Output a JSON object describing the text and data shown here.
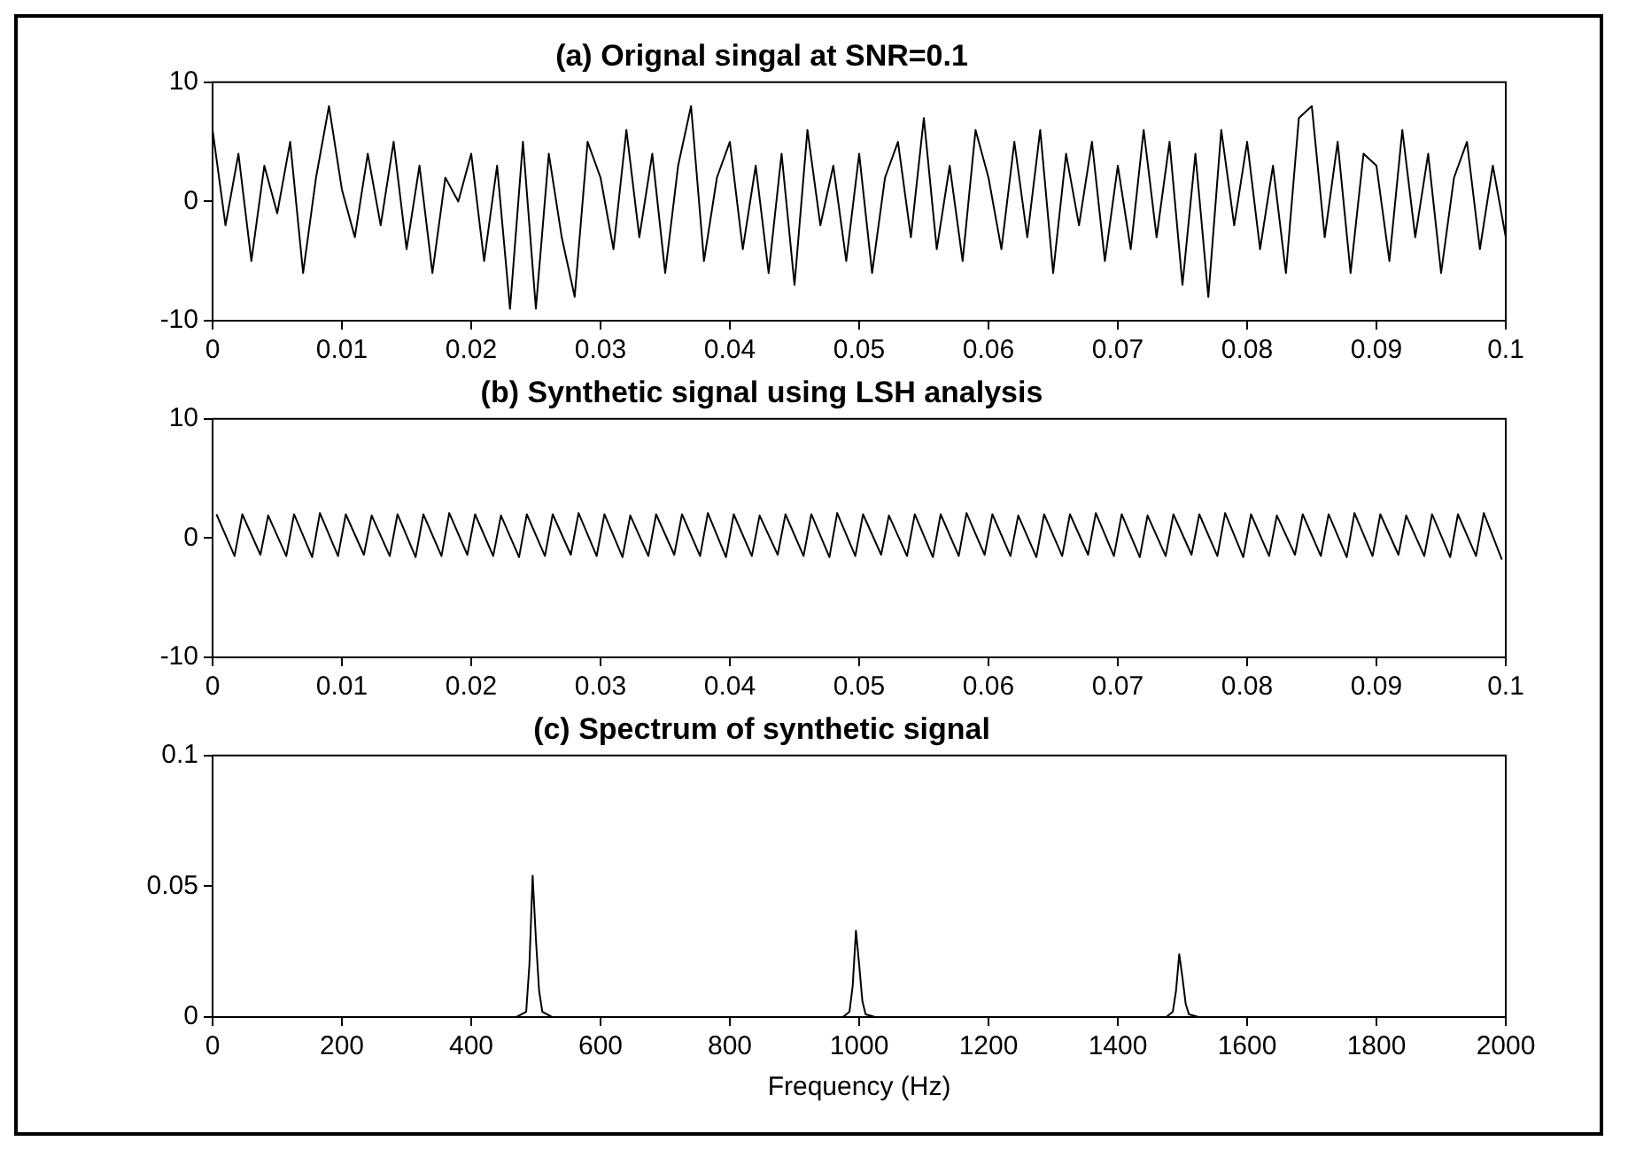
{
  "chart_data": [
    {
      "type": "line",
      "title": "(a) Orignal singal at SNR=0.1",
      "color": "#000000",
      "grid": false,
      "legend": false,
      "marker": "none",
      "line_style": "solid",
      "x": [
        0,
        0.001,
        0.002,
        0.003,
        0.004,
        0.005,
        0.006,
        0.007,
        0.008,
        0.009,
        0.01,
        0.011,
        0.012,
        0.013,
        0.014,
        0.015,
        0.016,
        0.017,
        0.018,
        0.019,
        0.02,
        0.021,
        0.022,
        0.023,
        0.024,
        0.025,
        0.026,
        0.027,
        0.028,
        0.029,
        0.03,
        0.031,
        0.032,
        0.033,
        0.034,
        0.035,
        0.036,
        0.037,
        0.038,
        0.039,
        0.04,
        0.041,
        0.042,
        0.043,
        0.044,
        0.045,
        0.046,
        0.047,
        0.048,
        0.049,
        0.05,
        0.051,
        0.052,
        0.053,
        0.054,
        0.055,
        0.056,
        0.057,
        0.058,
        0.059,
        0.06,
        0.061,
        0.062,
        0.063,
        0.064,
        0.065,
        0.066,
        0.067,
        0.068,
        0.069,
        0.07,
        0.071,
        0.072,
        0.073,
        0.074,
        0.075,
        0.076,
        0.077,
        0.078,
        0.079,
        0.08,
        0.081,
        0.082,
        0.083,
        0.084,
        0.085,
        0.086,
        0.087,
        0.088,
        0.089,
        0.09,
        0.091,
        0.092,
        0.093,
        0.094,
        0.095,
        0.096,
        0.097,
        0.098,
        0.099,
        0.1
      ],
      "values": [
        6,
        -2,
        4,
        -5,
        3,
        -1,
        5,
        -6,
        2,
        8,
        1,
        -3,
        4,
        -2,
        5,
        -4,
        3,
        -6,
        2,
        0,
        4,
        -5,
        3,
        -9,
        5,
        -9,
        4,
        -3,
        -8,
        5,
        2,
        -4,
        6,
        -3,
        4,
        -6,
        3,
        8,
        -5,
        2,
        5,
        -4,
        3,
        -6,
        4,
        -7,
        6,
        -2,
        3,
        -5,
        4,
        -6,
        2,
        5,
        -3,
        7,
        -4,
        3,
        -5,
        6,
        2,
        -4,
        5,
        -3,
        6,
        -6,
        4,
        -2,
        5,
        -5,
        3,
        -4,
        6,
        -3,
        5,
        -7,
        4,
        -8,
        6,
        -2,
        5,
        -4,
        3,
        -6,
        7,
        8,
        -3,
        5,
        -6,
        4,
        3,
        -5,
        6,
        -3,
        4,
        -6,
        2,
        5,
        -4,
        3,
        -3
      ],
      "xlim": [
        0,
        0.1
      ],
      "xticks": [
        0,
        0.01,
        0.02,
        0.03,
        0.04,
        0.05,
        0.06,
        0.07,
        0.08,
        0.09,
        0.1
      ],
      "ylim": [
        -10,
        10
      ],
      "yticks": [
        -10,
        0,
        10
      ]
    },
    {
      "type": "line",
      "title": "(b) Synthetic signal using LSH analysis",
      "color": "#000000",
      "grid": false,
      "legend": false,
      "marker": "none",
      "line_style": "solid",
      "x": [
        0.0003,
        0.0017,
        0.0023,
        0.0037,
        0.0043,
        0.0057,
        0.0063,
        0.0077,
        0.0083,
        0.0097,
        0.0103,
        0.0117,
        0.0123,
        0.0137,
        0.0143,
        0.0157,
        0.0163,
        0.0177,
        0.0183,
        0.0197,
        0.0203,
        0.0217,
        0.0223,
        0.0237,
        0.0243,
        0.0257,
        0.0263,
        0.0277,
        0.0283,
        0.0297,
        0.0303,
        0.0317,
        0.0323,
        0.0337,
        0.0343,
        0.0357,
        0.0363,
        0.0377,
        0.0383,
        0.0397,
        0.0403,
        0.0417,
        0.0423,
        0.0437,
        0.0443,
        0.0457,
        0.0463,
        0.0477,
        0.0483,
        0.0497,
        0.0503,
        0.0517,
        0.0523,
        0.0537,
        0.0543,
        0.0557,
        0.0563,
        0.0577,
        0.0583,
        0.0597,
        0.0603,
        0.0617,
        0.0623,
        0.0637,
        0.0643,
        0.0657,
        0.0663,
        0.0677,
        0.0683,
        0.0697,
        0.0703,
        0.0717,
        0.0723,
        0.0737,
        0.0743,
        0.0757,
        0.0763,
        0.0777,
        0.0783,
        0.0797,
        0.0803,
        0.0817,
        0.0823,
        0.0837,
        0.0843,
        0.0857,
        0.0863,
        0.0877,
        0.0883,
        0.0897,
        0.0903,
        0.0917,
        0.0923,
        0.0937,
        0.0943,
        0.0957,
        0.0963,
        0.0977,
        0.0983,
        0.0997
      ],
      "values": [
        2,
        -1.5,
        2,
        -1.4,
        1.9,
        -1.5,
        2,
        -1.6,
        2.1,
        -1.5,
        2,
        -1.4,
        1.9,
        -1.5,
        2,
        -1.6,
        2,
        -1.5,
        2.1,
        -1.4,
        2,
        -1.5,
        1.9,
        -1.6,
        2,
        -1.5,
        2,
        -1.4,
        2.1,
        -1.5,
        2,
        -1.6,
        1.9,
        -1.5,
        2,
        -1.4,
        2,
        -1.5,
        2.1,
        -1.6,
        2,
        -1.5,
        1.9,
        -1.4,
        2,
        -1.5,
        2,
        -1.6,
        2.1,
        -1.5,
        2,
        -1.4,
        1.9,
        -1.5,
        2,
        -1.6,
        2,
        -1.5,
        2.1,
        -1.4,
        2,
        -1.5,
        1.9,
        -1.6,
        2,
        -1.5,
        2,
        -1.4,
        2.1,
        -1.5,
        2,
        -1.6,
        1.9,
        -1.5,
        2,
        -1.4,
        2,
        -1.5,
        2.1,
        -1.6,
        2,
        -1.5,
        1.9,
        -1.4,
        2,
        -1.5,
        2,
        -1.6,
        2.1,
        -1.5,
        2,
        -1.4,
        1.9,
        -1.5,
        2,
        -1.6,
        2,
        -1.5,
        2.1,
        -1.8
      ],
      "xlim": [
        0,
        0.1
      ],
      "xticks": [
        0,
        0.01,
        0.02,
        0.03,
        0.04,
        0.05,
        0.06,
        0.07,
        0.08,
        0.09,
        0.1
      ],
      "ylim": [
        -10,
        10
      ],
      "yticks": [
        -10,
        0,
        10
      ]
    },
    {
      "type": "line",
      "title": "(c) Spectrum of synthetic signal",
      "xlabel": "Frequency (Hz)",
      "color": "#000000",
      "grid": false,
      "legend": false,
      "marker": "none",
      "line_style": "solid",
      "x": [
        0,
        470,
        485,
        490,
        495,
        500,
        505,
        510,
        525,
        975,
        985,
        990,
        995,
        1000,
        1005,
        1010,
        1025,
        1475,
        1485,
        1490,
        1495,
        1500,
        1505,
        1510,
        1525,
        2000
      ],
      "values": [
        0,
        0,
        0.002,
        0.02,
        0.054,
        0.03,
        0.01,
        0.002,
        0,
        0,
        0.002,
        0.012,
        0.033,
        0.02,
        0.006,
        0.001,
        0,
        0,
        0.002,
        0.01,
        0.024,
        0.015,
        0.005,
        0.001,
        0,
        0
      ],
      "xlim": [
        0,
        2000
      ],
      "xticks": [
        0,
        200,
        400,
        600,
        800,
        1000,
        1200,
        1400,
        1600,
        1800,
        2000
      ],
      "ylim": [
        0,
        0.1
      ],
      "yticks": [
        0,
        0.05,
        0.1
      ]
    }
  ]
}
